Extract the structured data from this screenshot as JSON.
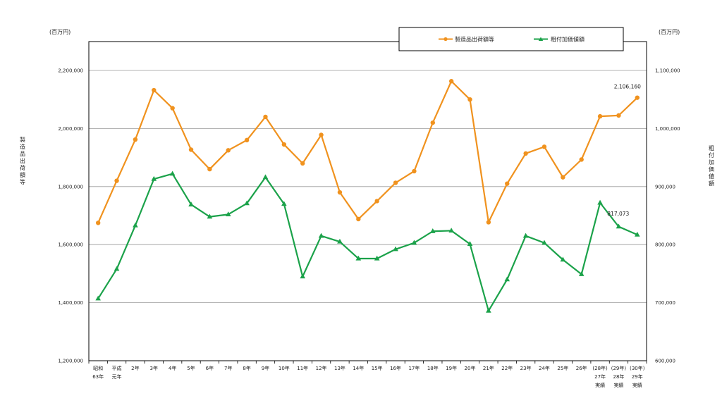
{
  "chart_data": {
    "type": "line",
    "categories": [
      [
        "昭和",
        "63年"
      ],
      [
        "平成",
        "元年"
      ],
      [
        "2年"
      ],
      [
        "3年"
      ],
      [
        "4年"
      ],
      [
        "5年"
      ],
      [
        "6年"
      ],
      [
        "7年"
      ],
      [
        "8年"
      ],
      [
        "9年"
      ],
      [
        "10年"
      ],
      [
        "11年"
      ],
      [
        "12年"
      ],
      [
        "13年"
      ],
      [
        "14年"
      ],
      [
        "15年"
      ],
      [
        "16年"
      ],
      [
        "17年"
      ],
      [
        "18年"
      ],
      [
        "19年"
      ],
      [
        "20年"
      ],
      [
        "21年"
      ],
      [
        "22年"
      ],
      [
        "23年"
      ],
      [
        "24年"
      ],
      [
        "25年"
      ],
      [
        "26年"
      ],
      [
        "(28年)",
        "27年",
        "実績"
      ],
      [
        "(29年)",
        "28年",
        "実績"
      ],
      [
        "(30年)",
        "29年",
        "実績"
      ]
    ],
    "series": [
      {
        "name": "製造品出荷額等",
        "axis": "left",
        "color": "#F0921E",
        "marker": "circle",
        "values": [
          1675000,
          1820000,
          1962000,
          2132000,
          2070000,
          1927000,
          1860000,
          1925000,
          1960000,
          2040000,
          1945000,
          1880000,
          1978000,
          1780000,
          1688000,
          1750000,
          1813000,
          1853000,
          2020000,
          2163000,
          2100000,
          1677000,
          1810000,
          1914000,
          1937000,
          1832000,
          1893000,
          2042000,
          2045000,
          2106160
        ]
      },
      {
        "name": "粗付加価値額",
        "axis": "right",
        "color": "#1BA24A",
        "marker": "triangle",
        "values": [
          707000,
          758000,
          833000,
          913000,
          922000,
          869000,
          848000,
          852000,
          871000,
          916000,
          870000,
          745000,
          815000,
          805000,
          776000,
          776000,
          792000,
          803000,
          823000,
          824000,
          801000,
          686000,
          740000,
          815000,
          803000,
          774000,
          749000,
          872000,
          831000,
          817073
        ]
      }
    ],
    "y_left": {
      "label": "製造品出荷額等",
      "unit": "(百万円)",
      "min": 1200000,
      "max": 2200000,
      "step": 200000,
      "ticks": [
        "1,200,000",
        "1,400,000",
        "1,600,000",
        "1,800,000",
        "2,000,000",
        "2,200,000"
      ]
    },
    "y_right": {
      "label": "粗付加価値額",
      "unit": "(百万円)",
      "min": 600000,
      "max": 1100000,
      "step": 100000,
      "ticks": [
        "600,000",
        "700,000",
        "800,000",
        "900,000",
        "1,000,000",
        "1,100,000"
      ]
    },
    "data_labels": {
      "last_left": "2,106,160",
      "last_right": "817,073"
    },
    "legend_position": "top-right",
    "grid": true
  }
}
